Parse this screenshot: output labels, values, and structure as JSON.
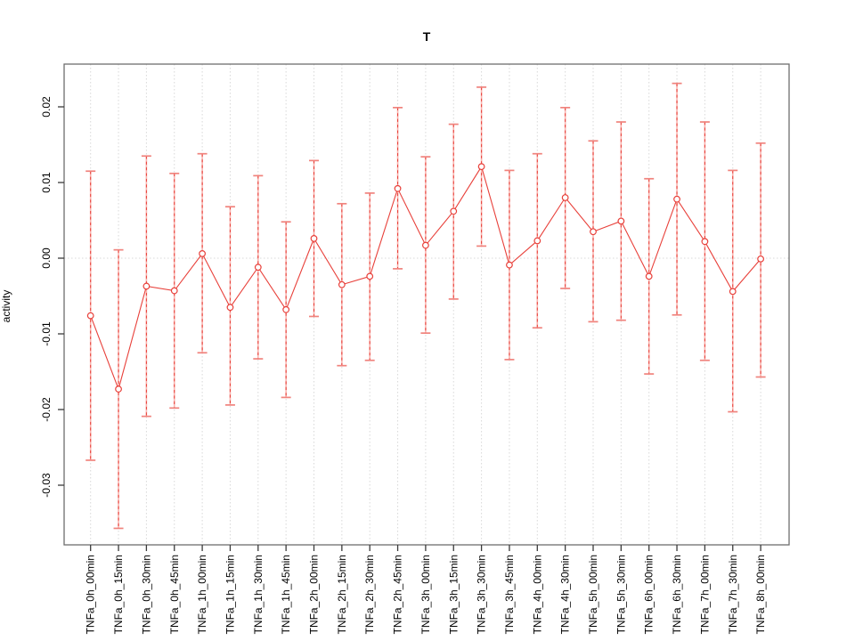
{
  "chart_data": {
    "type": "scatter",
    "title": "T",
    "xlabel": "",
    "ylabel": "activity",
    "legend_position": "none",
    "grid": {
      "vertical": "dotted light gray at every category",
      "horizontal": "dotted light gray at 0.00 only"
    },
    "ylim": [
      -0.0379,
      0.0257
    ],
    "yticks": {
      "values": [
        0.02,
        0.01,
        0.0,
        -0.01,
        -0.02,
        -0.03
      ],
      "labels": [
        "0.02",
        "0.01",
        "0.00",
        "-0.01",
        "-0.02",
        "-0.03"
      ]
    },
    "categories": [
      "TNFa_0h_00min",
      "TNFa_0h_15min",
      "TNFa_0h_30min",
      "TNFa_0h_45min",
      "TNFa_1h_00min",
      "TNFa_1h_15min",
      "TNFa_1h_30min",
      "TNFa_1h_45min",
      "TNFa_2h_00min",
      "TNFa_2h_15min",
      "TNFa_2h_30min",
      "TNFa_2h_45min",
      "TNFa_3h_00min",
      "TNFa_3h_15min",
      "TNFa_3h_30min",
      "TNFa_3h_45min",
      "TNFa_4h_00min",
      "TNFa_4h_30min",
      "TNFa_5h_00min",
      "TNFa_5h_30min",
      "TNFa_6h_00min",
      "TNFa_6h_30min",
      "TNFa_7h_00min",
      "TNFa_7h_30min",
      "TNFa_8h_00min"
    ],
    "series": [
      {
        "name": "activity",
        "marker": "open-circle",
        "values": [
          -0.0076,
          -0.0173,
          -0.0037,
          -0.0043,
          0.0006,
          -0.0065,
          -0.0012,
          -0.0068,
          0.0026,
          -0.0035,
          -0.0024,
          0.0092,
          0.0017,
          0.0062,
          0.0121,
          -0.0009,
          0.0023,
          0.008,
          0.0035,
          0.0049,
          -0.0024,
          0.0078,
          0.0022,
          -0.0044,
          -0.0001
        ],
        "error_high": [
          0.0115,
          0.0011,
          0.0135,
          0.0112,
          0.0138,
          0.0068,
          0.0109,
          0.0048,
          0.0129,
          0.0072,
          0.0086,
          0.0199,
          0.0134,
          0.0177,
          0.0226,
          0.0116,
          0.0138,
          0.0199,
          0.0155,
          0.018,
          0.0105,
          0.0231,
          0.018,
          0.0116,
          0.0152
        ],
        "error_low": [
          -0.0267,
          -0.0357,
          -0.0209,
          -0.0198,
          -0.0125,
          -0.0194,
          -0.0133,
          -0.0184,
          -0.0077,
          -0.0142,
          -0.0135,
          -0.0014,
          -0.0099,
          -0.0054,
          0.0016,
          -0.0134,
          -0.0092,
          -0.004,
          -0.0084,
          -0.0082,
          -0.0153,
          -0.0075,
          -0.0135,
          -0.0203,
          -0.0157
        ]
      }
    ],
    "colors": {
      "series_red": "#e8403a",
      "errorbar_pale": "#f9b3ae",
      "errorbar_cap": "#f0837d",
      "grid_gray": "#d8d8d8",
      "box_gray": "#6e6e6e",
      "tick_dark": "#3a3a3a",
      "text_black": "#000000",
      "background": "#ffffff"
    }
  }
}
